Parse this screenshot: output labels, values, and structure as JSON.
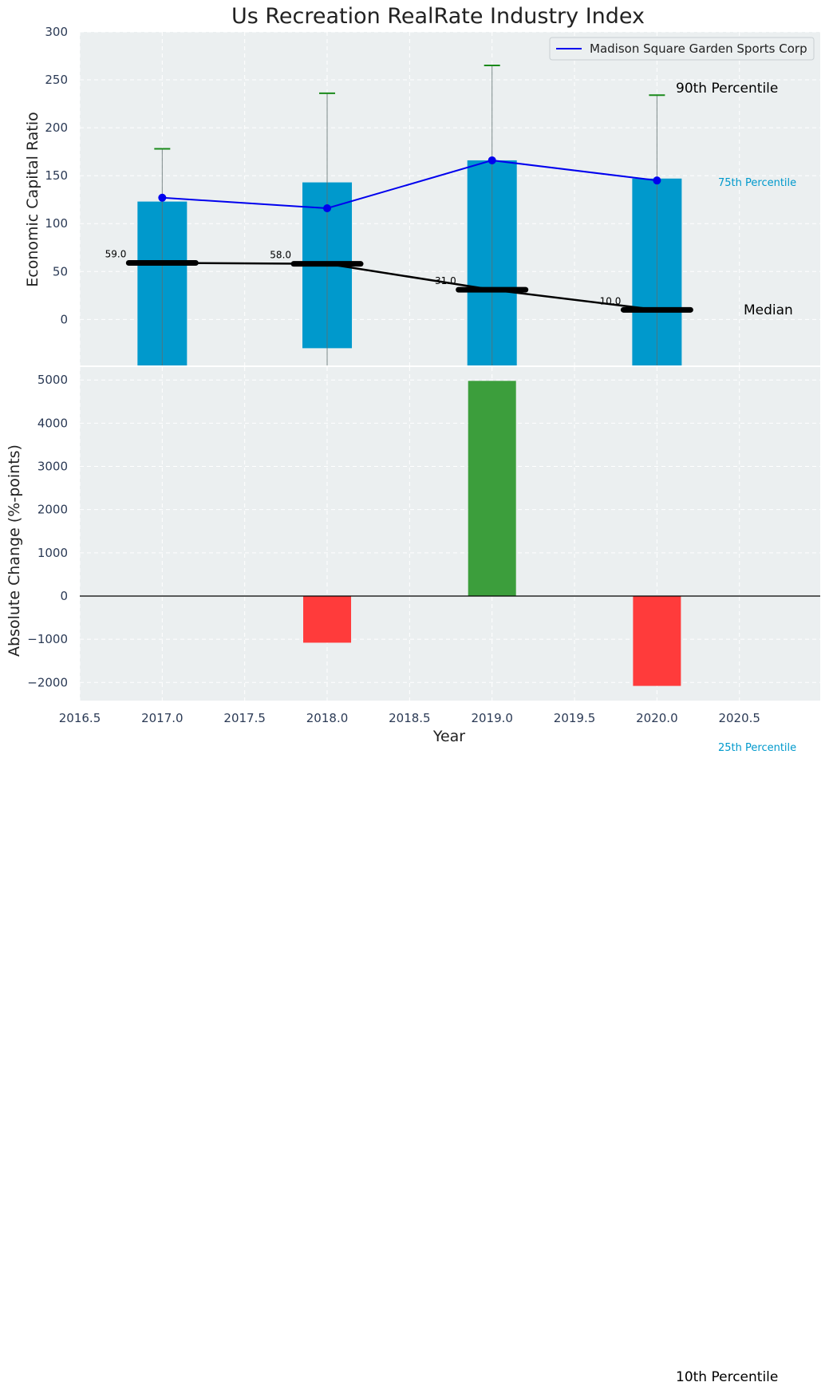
{
  "chart_data": [
    {
      "type": "bar",
      "title": "Us Recreation RealRate Industry Index",
      "ylabel": "Economic Capital Ratio",
      "ylim": [
        -48,
        300
      ],
      "yticks": [
        0,
        50,
        100,
        150,
        200,
        250,
        300
      ],
      "grid": true,
      "legend": {
        "position": "top-right",
        "entries": [
          "Madison Square Garden Sports Corp"
        ]
      },
      "x": [
        2017,
        2018,
        2019,
        2020
      ],
      "percentile_bands": {
        "p25": [
          -50,
          -30,
          -50,
          -50
        ],
        "p75": [
          123,
          143,
          166,
          147
        ],
        "p10": [
          -50,
          -50,
          -50,
          -50
        ],
        "p90": [
          178,
          236,
          265,
          234
        ],
        "color": "#0099cc"
      },
      "median": {
        "values": [
          59.0,
          58.0,
          31.0,
          10.0
        ],
        "labels": [
          "59.0",
          "58.0",
          "31.0",
          "10.0"
        ],
        "color": "#000000"
      },
      "series": [
        {
          "name": "Madison Square Garden Sports Corp",
          "values": [
            127,
            116,
            166,
            145
          ],
          "color": "#0000ee"
        }
      ],
      "annotations": {
        "p90": "90th Percentile",
        "p75": "75th Percentile",
        "median": "Median",
        "p25": "25th Percentile",
        "p10": "10th Percentile"
      }
    },
    {
      "type": "bar",
      "xlabel": "Year",
      "ylabel": "Absolute Change (%-points)",
      "ylim": [
        -2420,
        5300
      ],
      "yticks": [
        -2000,
        -1000,
        0,
        1000,
        2000,
        3000,
        4000,
        5000
      ],
      "xlim": [
        2016.5,
        2020.99
      ],
      "xticks": [
        "2016.5",
        "2017.0",
        "2017.5",
        "2018.0",
        "2018.5",
        "2019.0",
        "2019.5",
        "2020.0",
        "2020.5"
      ],
      "grid": true,
      "x": [
        2018,
        2019,
        2020
      ],
      "values": [
        -1080,
        4980,
        -2080
      ],
      "colors": {
        "positive": "#3c9e3c",
        "negative": "#ff3b3b"
      }
    }
  ]
}
